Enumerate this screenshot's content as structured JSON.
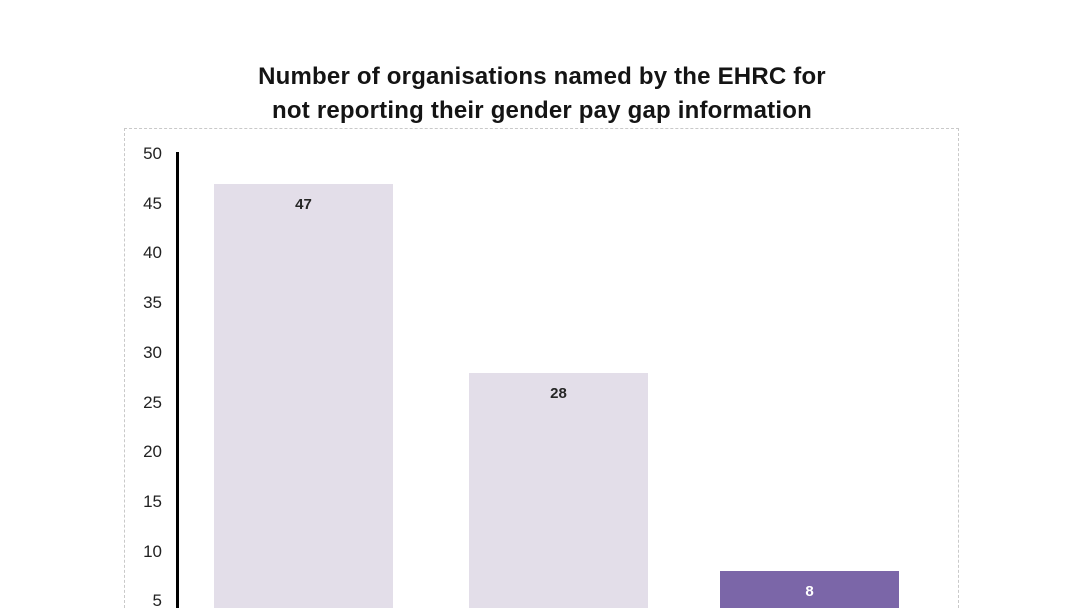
{
  "chart": {
    "title_lines": [
      "Number of organisations named by the EHRC for",
      "not reporting their gender pay gap information"
    ]
  },
  "chart_data": {
    "type": "bar",
    "title": "Number of organisations named by the EHRC for not reporting their gender pay gap information",
    "values": [
      47,
      28,
      8
    ],
    "data_labels": [
      "47",
      "28",
      "8"
    ],
    "yticks": [
      50,
      45,
      40,
      35,
      30,
      25,
      20,
      15,
      10,
      5
    ],
    "ylim": [
      0,
      50
    ],
    "grid": false,
    "legend": "none",
    "data_label_position": "inside-end",
    "bar_colors": [
      "#E3DEE9",
      "#E3DEE9",
      "#7B66A8"
    ],
    "label_colors": [
      "#262626",
      "#262626",
      "#FFFFFF"
    ],
    "axis_color": "#000000"
  }
}
